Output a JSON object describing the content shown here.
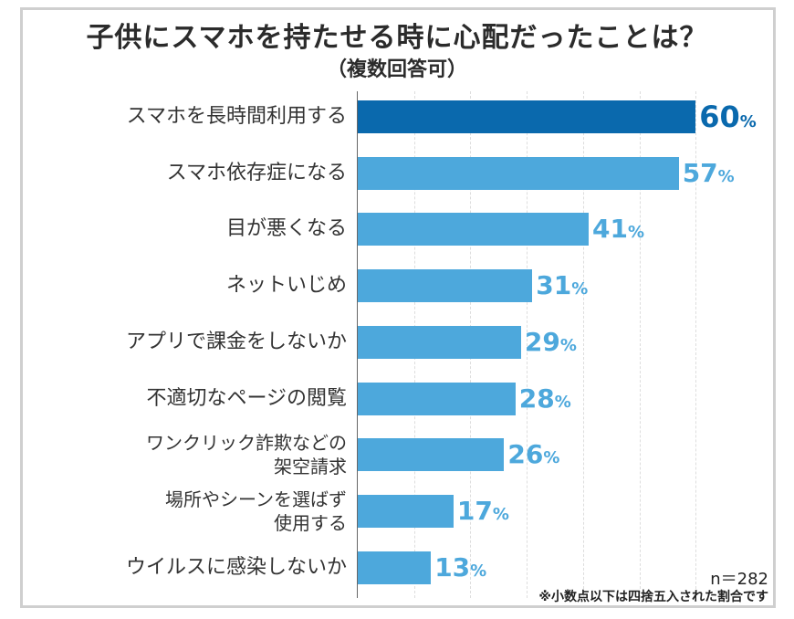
{
  "chart_data": {
    "type": "bar",
    "orientation": "horizontal",
    "title": "子供にスマホを持たせる時に心配だったことは？",
    "subtitle": "（複数回答可）",
    "categories": [
      "スマホを長時間利用する",
      "スマホ依存症になる",
      "目が悪くなる",
      "ネットいじめ",
      "アプリで課金をしないか",
      "不適切なページの閲覧",
      "ワンクリック詐欺などの\n架空請求",
      "場所やシーンを選ばず\n使用する",
      "ウイルスに感染しないか"
    ],
    "values": [
      60,
      57,
      41,
      31,
      29,
      28,
      26,
      17,
      13
    ],
    "unit": "%",
    "xlim": [
      0,
      70
    ],
    "grid": true,
    "colors": {
      "highlight": "#0a69ad",
      "default": "#4da8dc"
    },
    "sample_size": "n＝282",
    "note": "※小数点以下は四捨五入された割合です"
  }
}
